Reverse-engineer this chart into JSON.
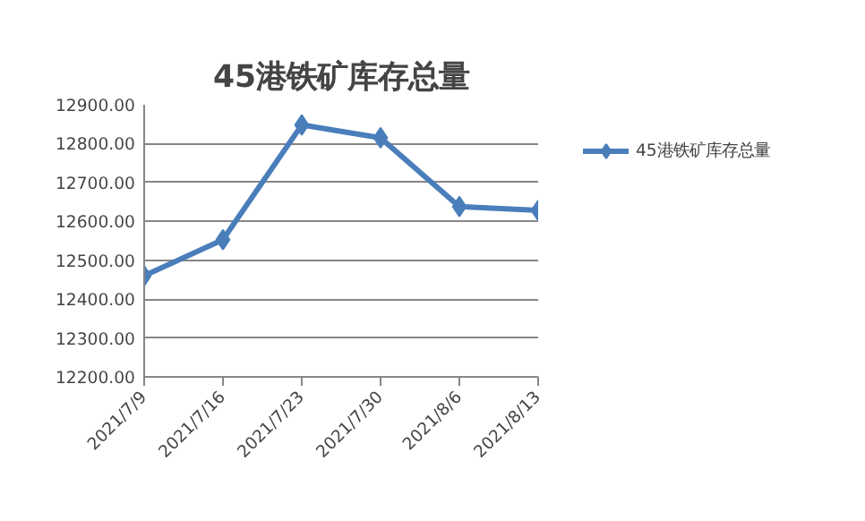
{
  "chart_data": {
    "type": "line",
    "title": "45港铁矿库存总量",
    "categories": [
      "2021/7/9",
      "2021/7/16",
      "2021/7/23",
      "2021/7/30",
      "2021/8/6",
      "2021/8/13"
    ],
    "series": [
      {
        "name": "45港铁矿库存总量",
        "color": "#4a7ebb",
        "values": [
          12460,
          12553,
          12848,
          12815,
          12638,
          12628
        ]
      }
    ],
    "ylim": [
      12200,
      12900
    ],
    "yticks": [
      {
        "value": 12200,
        "label": "12200.00"
      },
      {
        "value": 12300,
        "label": "12300.00"
      },
      {
        "value": 12400,
        "label": "12400.00"
      },
      {
        "value": 12500,
        "label": "12500.00"
      },
      {
        "value": 12600,
        "label": "12600.00"
      },
      {
        "value": 12700,
        "label": "12700.00"
      },
      {
        "value": 12800,
        "label": "12800.00"
      },
      {
        "value": 12900,
        "label": "12900.00"
      }
    ],
    "grid": "y",
    "legend": "right",
    "marker": "diamond",
    "line_style": "solid"
  }
}
